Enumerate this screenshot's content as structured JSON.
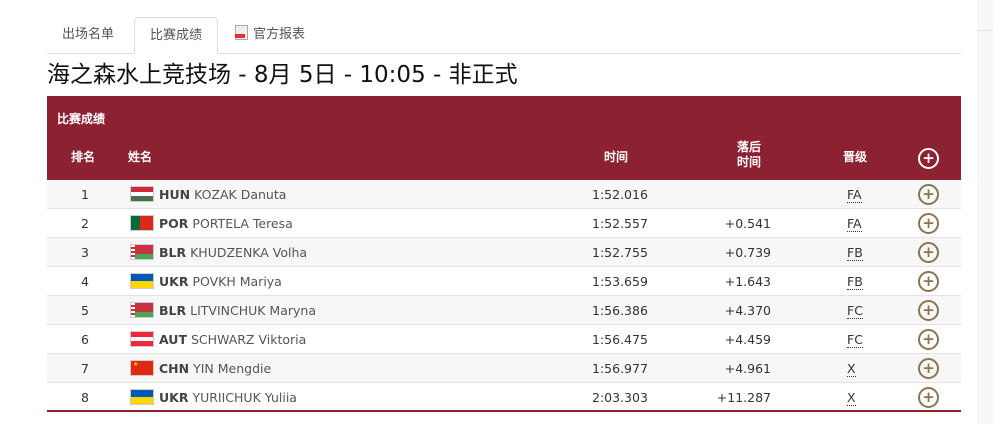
{
  "tabs": [
    {
      "label": "出场名单"
    },
    {
      "label": "比赛成绩"
    },
    {
      "label": "官方报表",
      "icon": "pdf-icon"
    }
  ],
  "title": "海之森水上竞技场 - 8月 5日 - 10:05 - 非正式",
  "table": {
    "caption": "比赛成绩",
    "headers": {
      "rank": "排名",
      "name": "姓名",
      "time": "时间",
      "behind_1": "落后",
      "behind_2": "时间",
      "qual": "晋级"
    },
    "header_color": "#8b2131",
    "rows": [
      {
        "rank": "1",
        "noc": "HUN",
        "name": "KOZAK Danuta",
        "time": "1:52.016",
        "behind": "",
        "qual": "FA",
        "flag": [
          "#ce2939",
          "#ffffff",
          "#477050"
        ]
      },
      {
        "rank": "2",
        "noc": "POR",
        "name": "PORTELA Teresa",
        "time": "1:52.557",
        "behind": "+0.541",
        "qual": "FA",
        "flag": "por"
      },
      {
        "rank": "3",
        "noc": "BLR",
        "name": "KHUDZENKA Volha",
        "time": "1:52.755",
        "behind": "+0.739",
        "qual": "FB",
        "flag": "blr"
      },
      {
        "rank": "4",
        "noc": "UKR",
        "name": "POVKH Mariya",
        "time": "1:53.659",
        "behind": "+1.643",
        "qual": "FB",
        "flag": [
          "#0057b7",
          "#ffd700"
        ]
      },
      {
        "rank": "5",
        "noc": "BLR",
        "name": "LITVINCHUK Maryna",
        "time": "1:56.386",
        "behind": "+4.370",
        "qual": "FC",
        "flag": "blr"
      },
      {
        "rank": "6",
        "noc": "AUT",
        "name": "SCHWARZ Viktoria",
        "time": "1:56.475",
        "behind": "+4.459",
        "qual": "FC",
        "flag": [
          "#ed2939",
          "#ffffff",
          "#ed2939"
        ]
      },
      {
        "rank": "7",
        "noc": "CHN",
        "name": "YIN Mengdie",
        "time": "1:56.977",
        "behind": "+4.961",
        "qual": "X",
        "flag": "chn"
      },
      {
        "rank": "8",
        "noc": "UKR",
        "name": "YURIICHUK Yuliia",
        "time": "2:03.303",
        "behind": "+11.287",
        "qual": "X",
        "flag": [
          "#0057b7",
          "#ffd700"
        ]
      }
    ]
  }
}
